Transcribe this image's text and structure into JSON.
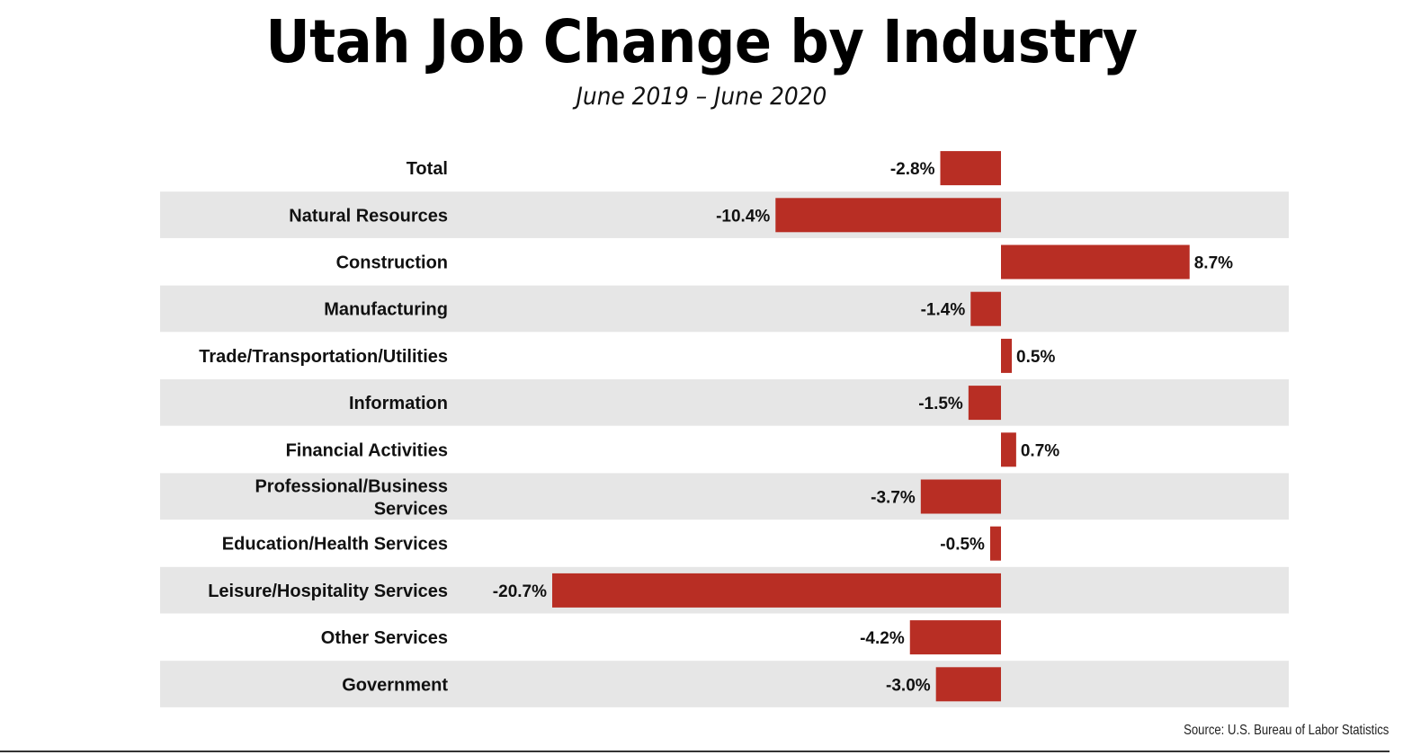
{
  "chart_data": {
    "type": "bar",
    "orientation": "horizontal",
    "title": "Utah Job Change by Industry",
    "subtitle": "June 2019 – June 2020",
    "categories": [
      "Total",
      "Natural Resources",
      "Construction",
      "Manufacturing",
      "Trade/Transportation/Utilities",
      "Information",
      "Financial Activities",
      "Professional/Business Services",
      "Education/Health Services",
      "Leisure/Hospitality Services",
      "Other Services",
      "Government"
    ],
    "values": [
      -2.8,
      -10.4,
      8.7,
      -1.4,
      0.5,
      -1.5,
      0.7,
      -3.7,
      -0.5,
      -20.7,
      -4.2,
      -3.0
    ],
    "data_labels": [
      "-2.8%",
      "-10.4%",
      "8.7%",
      "-1.4%",
      "0.5%",
      "-1.5%",
      "0.7%",
      "-3.7%",
      "-0.5%",
      "-20.7%",
      "-4.2%",
      "-3.0%"
    ],
    "unit": "%",
    "xlim": [
      -20.7,
      12.9
    ],
    "grid": false,
    "alternating_row_shading": true,
    "colors": {
      "bar": "#B82E24",
      "stripe": "#E6E6E6",
      "text": "#111111"
    },
    "source": "Source: U.S. Bureau of Labor Statistics"
  }
}
